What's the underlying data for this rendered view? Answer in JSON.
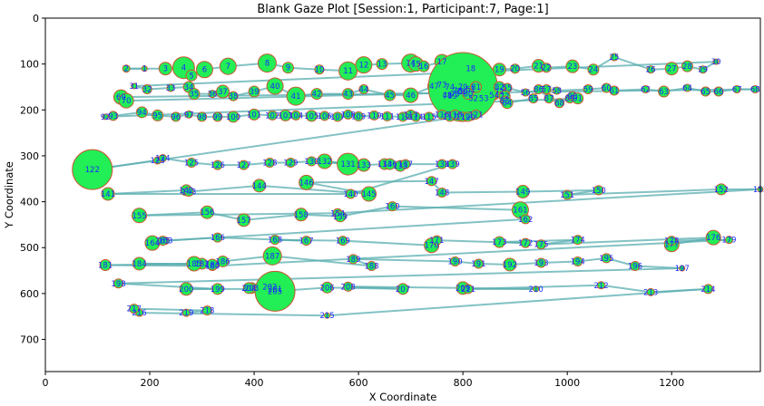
{
  "chart_data": {
    "type": "scatter",
    "title": "Blank Gaze Plot [Session:1, Participant:7, Page:1]",
    "xlabel": "X Coordinate",
    "ylabel": "Y Coordinate",
    "xlim": [
      0,
      1370
    ],
    "ylim": [
      770,
      0
    ],
    "xticks": [
      0,
      200,
      400,
      600,
      800,
      1000,
      1200
    ],
    "yticks": [
      0,
      100,
      200,
      300,
      400,
      500,
      600,
      700
    ],
    "grid": false,
    "colors": {
      "fixation_fill": "#22ee55",
      "fixation_edge": "#cc5533",
      "saccade_line": "#5aaeb0",
      "label": "#1a2bff"
    },
    "fixations": [
      {
        "id": 1,
        "x": 190,
        "y": 110,
        "r": 3
      },
      {
        "id": 2,
        "x": 155,
        "y": 110,
        "r": 4
      },
      {
        "id": 3,
        "x": 230,
        "y": 110,
        "r": 7
      },
      {
        "id": 4,
        "x": 265,
        "y": 108,
        "r": 12
      },
      {
        "id": 5,
        "x": 280,
        "y": 125,
        "r": 6
      },
      {
        "id": 6,
        "x": 305,
        "y": 112,
        "r": 9
      },
      {
        "id": 7,
        "x": 350,
        "y": 105,
        "r": 9
      },
      {
        "id": 8,
        "x": 425,
        "y": 98,
        "r": 10
      },
      {
        "id": 9,
        "x": 465,
        "y": 108,
        "r": 6
      },
      {
        "id": 10,
        "x": 525,
        "y": 112,
        "r": 5
      },
      {
        "id": 11,
        "x": 580,
        "y": 115,
        "r": 10
      },
      {
        "id": 12,
        "x": 610,
        "y": 102,
        "r": 9
      },
      {
        "id": 13,
        "x": 645,
        "y": 100,
        "r": 6
      },
      {
        "id": 14,
        "x": 700,
        "y": 98,
        "r": 10
      },
      {
        "id": 15,
        "x": 710,
        "y": 100,
        "r": 8
      },
      {
        "id": 16,
        "x": 725,
        "y": 105,
        "r": 6
      },
      {
        "id": 17,
        "x": 760,
        "y": 95,
        "r": 8
      },
      {
        "id": 18,
        "x": 815,
        "y": 110,
        "r": 6
      },
      {
        "id": 19,
        "x": 870,
        "y": 112,
        "r": 7
      },
      {
        "id": 20,
        "x": 900,
        "y": 110,
        "r": 5
      },
      {
        "id": 21,
        "x": 945,
        "y": 104,
        "r": 7
      },
      {
        "id": 22,
        "x": 960,
        "y": 108,
        "r": 5
      },
      {
        "id": 23,
        "x": 1010,
        "y": 105,
        "r": 7
      },
      {
        "id": 24,
        "x": 1050,
        "y": 112,
        "r": 6
      },
      {
        "id": 25,
        "x": 1090,
        "y": 85,
        "r": 4
      },
      {
        "id": 26,
        "x": 1160,
        "y": 112,
        "r": 4
      },
      {
        "id": 27,
        "x": 1200,
        "y": 110,
        "r": 7
      },
      {
        "id": 28,
        "x": 1230,
        "y": 105,
        "r": 6
      },
      {
        "id": 29,
        "x": 1260,
        "y": 112,
        "r": 4
      },
      {
        "id": 30,
        "x": 1285,
        "y": 95,
        "r": 3
      },
      {
        "id": 31,
        "x": 170,
        "y": 148,
        "r": 3
      },
      {
        "id": 32,
        "x": 195,
        "y": 155,
        "r": 5
      },
      {
        "id": 33,
        "x": 240,
        "y": 152,
        "r": 4
      },
      {
        "id": 34,
        "x": 275,
        "y": 150,
        "r": 6
      },
      {
        "id": 35,
        "x": 285,
        "y": 165,
        "r": 6
      },
      {
        "id": 36,
        "x": 320,
        "y": 165,
        "r": 4
      },
      {
        "id": 37,
        "x": 340,
        "y": 160,
        "r": 7
      },
      {
        "id": 38,
        "x": 360,
        "y": 170,
        "r": 5
      },
      {
        "id": 39,
        "x": 400,
        "y": 160,
        "r": 6
      },
      {
        "id": 40,
        "x": 440,
        "y": 148,
        "r": 9
      },
      {
        "id": 41,
        "x": 480,
        "y": 170,
        "r": 10
      },
      {
        "id": 42,
        "x": 520,
        "y": 165,
        "r": 6
      },
      {
        "id": 43,
        "x": 580,
        "y": 165,
        "r": 6
      },
      {
        "id": 44,
        "x": 610,
        "y": 155,
        "r": 5
      },
      {
        "id": 45,
        "x": 660,
        "y": 168,
        "r": 6
      },
      {
        "id": 46,
        "x": 700,
        "y": 168,
        "r": 8
      },
      {
        "id": 47,
        "x": 745,
        "y": 148,
        "r": 7
      },
      {
        "id": 48,
        "x": 770,
        "y": 168,
        "r": 12
      },
      {
        "id": 49,
        "x": 780,
        "y": 170,
        "r": 10
      },
      {
        "id": 50,
        "x": 800,
        "y": 160,
        "r": 8
      },
      {
        "id": 51,
        "x": 815,
        "y": 155,
        "r": 8
      },
      {
        "id": 52,
        "x": 820,
        "y": 175,
        "r": 9
      },
      {
        "id": 53,
        "x": 840,
        "y": 175,
        "r": 6
      },
      {
        "id": 54,
        "x": 860,
        "y": 168,
        "r": 5
      },
      {
        "id": 55,
        "x": 885,
        "y": 152,
        "r": 5
      },
      {
        "id": 56,
        "x": 920,
        "y": 162,
        "r": 4
      },
      {
        "id": 57,
        "x": 960,
        "y": 155,
        "r": 5
      },
      {
        "id": 58,
        "x": 980,
        "y": 158,
        "r": 4
      },
      {
        "id": 59,
        "x": 1040,
        "y": 155,
        "r": 5
      },
      {
        "id": 60,
        "x": 1075,
        "y": 152,
        "r": 5
      },
      {
        "id": 61,
        "x": 1090,
        "y": 158,
        "r": 5
      },
      {
        "id": 62,
        "x": 1150,
        "y": 155,
        "r": 4
      },
      {
        "id": 63,
        "x": 1185,
        "y": 160,
        "r": 6
      },
      {
        "id": 64,
        "x": 1230,
        "y": 152,
        "r": 4
      },
      {
        "id": 65,
        "x": 1265,
        "y": 160,
        "r": 5
      },
      {
        "id": 66,
        "x": 1290,
        "y": 160,
        "r": 5
      },
      {
        "id": 67,
        "x": 1325,
        "y": 155,
        "r": 4
      },
      {
        "id": 68,
        "x": 1360,
        "y": 155,
        "r": 4
      },
      {
        "id": 69,
        "x": 145,
        "y": 172,
        "r": 8
      },
      {
        "id": 70,
        "x": 155,
        "y": 180,
        "r": 8
      },
      {
        "id": 71,
        "x": 870,
        "y": 160,
        "r": 7
      },
      {
        "id": 72,
        "x": 880,
        "y": 170,
        "r": 6
      },
      {
        "id": 73,
        "x": 760,
        "y": 145,
        "r": 5
      },
      {
        "id": 74,
        "x": 775,
        "y": 150,
        "r": 5
      },
      {
        "id": 75,
        "x": 785,
        "y": 165,
        "r": 5
      },
      {
        "id": 76,
        "x": 790,
        "y": 158,
        "r": 5
      },
      {
        "id": 77,
        "x": 770,
        "y": 170,
        "r": 5
      },
      {
        "id": 78,
        "x": 795,
        "y": 160,
        "r": 5
      },
      {
        "id": 79,
        "x": 800,
        "y": 150,
        "r": 38
      },
      {
        "id": 80,
        "x": 810,
        "y": 165,
        "r": 6
      },
      {
        "id": 81,
        "x": 825,
        "y": 150,
        "r": 6
      },
      {
        "id": 82,
        "x": 870,
        "y": 150,
        "r": 6
      },
      {
        "id": 83,
        "x": 880,
        "y": 180,
        "r": 5
      },
      {
        "id": 84,
        "x": 885,
        "y": 185,
        "r": 6
      },
      {
        "id": 85,
        "x": 935,
        "y": 175,
        "r": 5
      },
      {
        "id": 86,
        "x": 945,
        "y": 155,
        "r": 5
      },
      {
        "id": 87,
        "x": 965,
        "y": 175,
        "r": 5
      },
      {
        "id": 88,
        "x": 985,
        "y": 185,
        "r": 5
      },
      {
        "id": 89,
        "x": 1005,
        "y": 175,
        "r": 5
      },
      {
        "id": 90,
        "x": 1010,
        "y": 170,
        "r": 5
      },
      {
        "id": 91,
        "x": 1020,
        "y": 175,
        "r": 6
      },
      {
        "id": 92,
        "x": 115,
        "y": 215,
        "r": 3
      },
      {
        "id": 93,
        "x": 130,
        "y": 213,
        "r": 5
      },
      {
        "id": 94,
        "x": 185,
        "y": 205,
        "r": 6
      },
      {
        "id": 95,
        "x": 215,
        "y": 212,
        "r": 6
      },
      {
        "id": 96,
        "x": 250,
        "y": 215,
        "r": 5
      },
      {
        "id": 97,
        "x": 275,
        "y": 210,
        "r": 4
      },
      {
        "id": 98,
        "x": 300,
        "y": 215,
        "r": 5
      },
      {
        "id": 99,
        "x": 330,
        "y": 215,
        "r": 5
      },
      {
        "id": 100,
        "x": 360,
        "y": 215,
        "r": 6
      },
      {
        "id": 101,
        "x": 400,
        "y": 210,
        "r": 6
      },
      {
        "id": 102,
        "x": 435,
        "y": 212,
        "r": 5
      },
      {
        "id": 103,
        "x": 460,
        "y": 212,
        "r": 6
      },
      {
        "id": 104,
        "x": 480,
        "y": 212,
        "r": 5
      },
      {
        "id": 105,
        "x": 510,
        "y": 213,
        "r": 6
      },
      {
        "id": 106,
        "x": 535,
        "y": 213,
        "r": 5
      },
      {
        "id": 107,
        "x": 560,
        "y": 215,
        "r": 5
      },
      {
        "id": 108,
        "x": 580,
        "y": 210,
        "r": 5
      },
      {
        "id": 109,
        "x": 600,
        "y": 214,
        "r": 5
      },
      {
        "id": 110,
        "x": 630,
        "y": 212,
        "r": 5
      },
      {
        "id": 111,
        "x": 655,
        "y": 214,
        "r": 5
      },
      {
        "id": 112,
        "x": 685,
        "y": 215,
        "r": 5
      },
      {
        "id": 113,
        "x": 700,
        "y": 210,
        "r": 5
      },
      {
        "id": 114,
        "x": 710,
        "y": 215,
        "r": 5
      },
      {
        "id": 115,
        "x": 735,
        "y": 215,
        "r": 5
      },
      {
        "id": 116,
        "x": 760,
        "y": 210,
        "r": 5
      },
      {
        "id": 117,
        "x": 775,
        "y": 215,
        "r": 5
      },
      {
        "id": 118,
        "x": 785,
        "y": 210,
        "r": 5
      },
      {
        "id": 119,
        "x": 800,
        "y": 215,
        "r": 5
      },
      {
        "id": 120,
        "x": 810,
        "y": 215,
        "r": 5
      },
      {
        "id": 121,
        "x": 825,
        "y": 210,
        "r": 5
      },
      {
        "id": 122,
        "x": 90,
        "y": 330,
        "r": 22
      },
      {
        "id": 123,
        "x": 215,
        "y": 310,
        "r": 4
      },
      {
        "id": 124,
        "x": 225,
        "y": 305,
        "r": 4
      },
      {
        "id": 125,
        "x": 280,
        "y": 315,
        "r": 5
      },
      {
        "id": 126,
        "x": 330,
        "y": 320,
        "r": 5
      },
      {
        "id": 127,
        "x": 380,
        "y": 320,
        "r": 5
      },
      {
        "id": 128,
        "x": 430,
        "y": 315,
        "r": 5
      },
      {
        "id": 129,
        "x": 470,
        "y": 315,
        "r": 5
      },
      {
        "id": 130,
        "x": 510,
        "y": 312,
        "r": 5
      },
      {
        "id": 131,
        "x": 580,
        "y": 318,
        "r": 12
      },
      {
        "id": 132,
        "x": 535,
        "y": 312,
        "r": 8
      },
      {
        "id": 133,
        "x": 610,
        "y": 320,
        "r": 7
      },
      {
        "id": 134,
        "x": 650,
        "y": 318,
        "r": 6
      },
      {
        "id": 135,
        "x": 680,
        "y": 322,
        "r": 6
      },
      {
        "id": 136,
        "x": 660,
        "y": 318,
        "r": 6
      },
      {
        "id": 137,
        "x": 690,
        "y": 318,
        "r": 5
      },
      {
        "id": 138,
        "x": 760,
        "y": 318,
        "r": 5
      },
      {
        "id": 139,
        "x": 780,
        "y": 318,
        "r": 5
      },
      {
        "id": 140,
        "x": 585,
        "y": 383,
        "r": 5
      },
      {
        "id": 141,
        "x": 120,
        "y": 383,
        "r": 7
      },
      {
        "id": 142,
        "x": 270,
        "y": 375,
        "r": 6
      },
      {
        "id": 143,
        "x": 275,
        "y": 378,
        "r": 5
      },
      {
        "id": 144,
        "x": 410,
        "y": 365,
        "r": 7
      },
      {
        "id": 145,
        "x": 620,
        "y": 383,
        "r": 8
      },
      {
        "id": 146,
        "x": 500,
        "y": 358,
        "r": 8
      },
      {
        "id": 147,
        "x": 740,
        "y": 355,
        "r": 5
      },
      {
        "id": 148,
        "x": 760,
        "y": 380,
        "r": 5
      },
      {
        "id": 149,
        "x": 915,
        "y": 378,
        "r": 7
      },
      {
        "id": 150,
        "x": 1060,
        "y": 375,
        "r": 5
      },
      {
        "id": 151,
        "x": 1000,
        "y": 385,
        "r": 5
      },
      {
        "id": 152,
        "x": 1295,
        "y": 373,
        "r": 6
      },
      {
        "id": 153,
        "x": 1370,
        "y": 373,
        "r": 3
      },
      {
        "id": 154,
        "x": 560,
        "y": 425,
        "r": 5
      },
      {
        "id": 155,
        "x": 180,
        "y": 430,
        "r": 8
      },
      {
        "id": 156,
        "x": 310,
        "y": 423,
        "r": 7
      },
      {
        "id": 157,
        "x": 380,
        "y": 440,
        "r": 7
      },
      {
        "id": 158,
        "x": 490,
        "y": 428,
        "r": 7
      },
      {
        "id": 159,
        "x": 565,
        "y": 432,
        "r": 6
      },
      {
        "id": 160,
        "x": 665,
        "y": 410,
        "r": 5
      },
      {
        "id": 161,
        "x": 910,
        "y": 418,
        "r": 9
      },
      {
        "id": 162,
        "x": 920,
        "y": 438,
        "r": 5
      },
      {
        "id": 163,
        "x": 230,
        "y": 485,
        "r": 4
      },
      {
        "id": 164,
        "x": 205,
        "y": 490,
        "r": 8
      },
      {
        "id": 165,
        "x": 225,
        "y": 485,
        "r": 5
      },
      {
        "id": 166,
        "x": 330,
        "y": 478,
        "r": 5
      },
      {
        "id": 167,
        "x": 500,
        "y": 485,
        "r": 5
      },
      {
        "id": 168,
        "x": 440,
        "y": 483,
        "r": 5
      },
      {
        "id": 169,
        "x": 570,
        "y": 485,
        "r": 5
      },
      {
        "id": 170,
        "x": 740,
        "y": 495,
        "r": 8
      },
      {
        "id": 171,
        "x": 750,
        "y": 484,
        "r": 5
      },
      {
        "id": 172,
        "x": 920,
        "y": 490,
        "r": 5
      },
      {
        "id": 173,
        "x": 870,
        "y": 488,
        "r": 6
      },
      {
        "id": 174,
        "x": 1020,
        "y": 483,
        "r": 5
      },
      {
        "id": 175,
        "x": 950,
        "y": 493,
        "r": 5
      },
      {
        "id": 176,
        "x": 1280,
        "y": 478,
        "r": 8
      },
      {
        "id": 177,
        "x": 1200,
        "y": 493,
        "r": 8
      },
      {
        "id": 178,
        "x": 1200,
        "y": 485,
        "r": 5
      },
      {
        "id": 179,
        "x": 1310,
        "y": 483,
        "r": 4
      },
      {
        "id": 180,
        "x": 320,
        "y": 540,
        "r": 5
      },
      {
        "id": 181,
        "x": 115,
        "y": 538,
        "r": 6
      },
      {
        "id": 182,
        "x": 300,
        "y": 535,
        "r": 6
      },
      {
        "id": 183,
        "x": 320,
        "y": 537,
        "r": 6
      },
      {
        "id": 184,
        "x": 180,
        "y": 535,
        "r": 7
      },
      {
        "id": 185,
        "x": 285,
        "y": 535,
        "r": 8
      },
      {
        "id": 186,
        "x": 340,
        "y": 530,
        "r": 6
      },
      {
        "id": 187,
        "x": 435,
        "y": 518,
        "r": 10
      },
      {
        "id": 188,
        "x": 625,
        "y": 540,
        "r": 5
      },
      {
        "id": 189,
        "x": 590,
        "y": 525,
        "r": 5
      },
      {
        "id": 190,
        "x": 785,
        "y": 530,
        "r": 5
      },
      {
        "id": 191,
        "x": 830,
        "y": 535,
        "r": 5
      },
      {
        "id": 192,
        "x": 890,
        "y": 537,
        "r": 7
      },
      {
        "id": 193,
        "x": 950,
        "y": 533,
        "r": 5
      },
      {
        "id": 194,
        "x": 1020,
        "y": 530,
        "r": 5
      },
      {
        "id": 195,
        "x": 1075,
        "y": 523,
        "r": 5
      },
      {
        "id": 196,
        "x": 1130,
        "y": 540,
        "r": 5
      },
      {
        "id": 197,
        "x": 1220,
        "y": 545,
        "r": 3
      },
      {
        "id": 198,
        "x": 140,
        "y": 578,
        "r": 5
      },
      {
        "id": 199,
        "x": 330,
        "y": 590,
        "r": 6
      },
      {
        "id": 200,
        "x": 270,
        "y": 590,
        "r": 7
      },
      {
        "id": 201,
        "x": 440,
        "y": 590,
        "r": 8
      },
      {
        "id": 202,
        "x": 430,
        "y": 585,
        "r": 6
      },
      {
        "id": 203,
        "x": 395,
        "y": 588,
        "r": 6
      },
      {
        "id": 204,
        "x": 390,
        "y": 588,
        "r": 6
      },
      {
        "id": 205,
        "x": 440,
        "y": 595,
        "r": 22
      },
      {
        "id": 206,
        "x": 540,
        "y": 587,
        "r": 6
      },
      {
        "id": 207,
        "x": 685,
        "y": 590,
        "r": 6
      },
      {
        "id": 208,
        "x": 580,
        "y": 585,
        "r": 5
      },
      {
        "id": 209,
        "x": 800,
        "y": 588,
        "r": 7
      },
      {
        "id": 210,
        "x": 940,
        "y": 590,
        "r": 3
      },
      {
        "id": 211,
        "x": 810,
        "y": 590,
        "r": 5
      },
      {
        "id": 212,
        "x": 1065,
        "y": 582,
        "r": 4
      },
      {
        "id": 213,
        "x": 1160,
        "y": 597,
        "r": 4
      },
      {
        "id": 214,
        "x": 1270,
        "y": 590,
        "r": 5
      },
      {
        "id": 215,
        "x": 540,
        "y": 648,
        "r": 3
      },
      {
        "id": 216,
        "x": 180,
        "y": 642,
        "r": 4
      },
      {
        "id": 217,
        "x": 170,
        "y": 633,
        "r": 5
      },
      {
        "id": 218,
        "x": 310,
        "y": 637,
        "r": 5
      },
      {
        "id": 219,
        "x": 270,
        "y": 642,
        "r": 4
      }
    ]
  }
}
